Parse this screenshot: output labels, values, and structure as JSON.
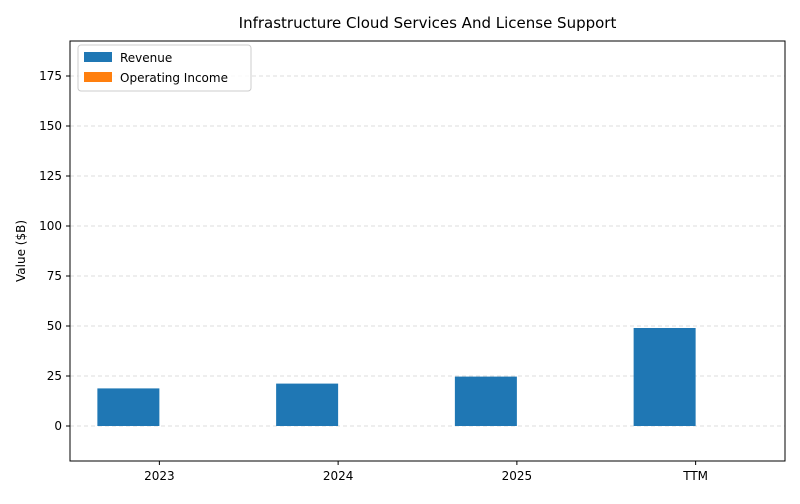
{
  "chart_data": {
    "type": "bar",
    "title": "Infrastructure Cloud Services And License Support",
    "xlabel": "",
    "ylabel": "Value ($B)",
    "categories": [
      "2023",
      "2024",
      "2025",
      "TTM"
    ],
    "ylim": [
      -17.5,
      192.5
    ],
    "yticks": [
      0,
      25,
      50,
      75,
      100,
      125,
      150,
      175
    ],
    "grid": "y-dashed",
    "legend_position": "top-left",
    "series": [
      {
        "name": "Revenue",
        "color": "#1f77b4",
        "values": [
          18.8,
          21.2,
          24.7,
          49.0
        ]
      },
      {
        "name": "Operating Income",
        "color": "#ff7f0e",
        "values": [
          0,
          0,
          0,
          0
        ]
      }
    ]
  }
}
